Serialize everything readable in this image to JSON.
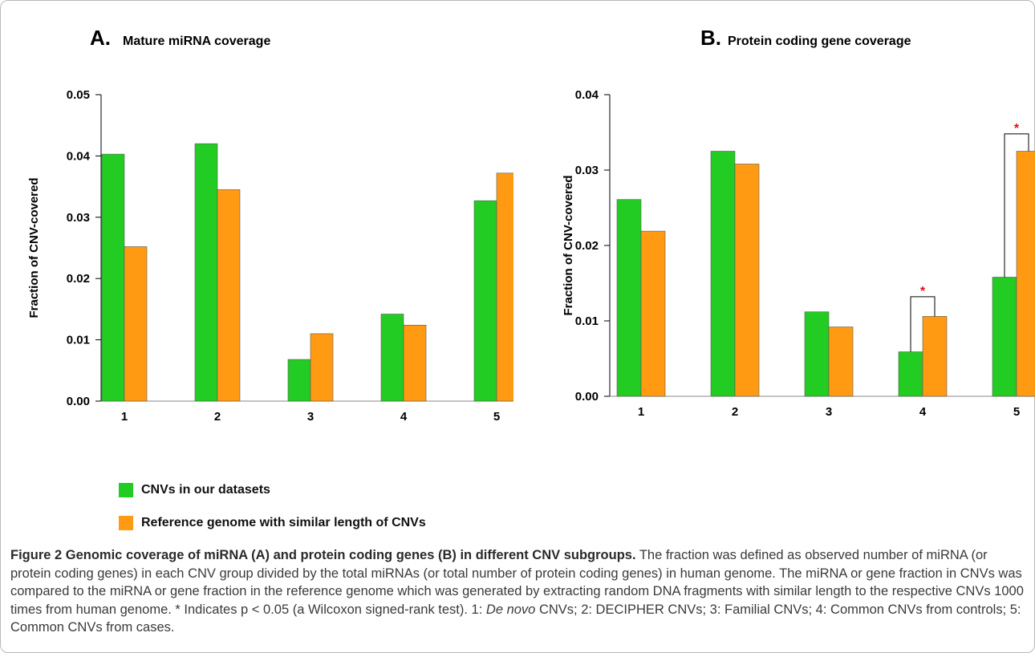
{
  "colors": {
    "ours": "#22cc22",
    "reference": "#ff9a12",
    "significance": "#e01010",
    "axis": "#000000"
  },
  "chart_data": [
    {
      "type": "bar",
      "panel_letter": "A.",
      "title": "Mature miRNA coverage",
      "ylabel": "Fraction of CNV-covered",
      "xlabel": "",
      "ylim": [
        0,
        0.05
      ],
      "yticks": [
        "0.00",
        "0.01",
        "0.02",
        "0.03",
        "0.04",
        "0.05"
      ],
      "categories": [
        "1",
        "2",
        "3",
        "4",
        "5"
      ],
      "series": [
        {
          "name": "CNVs in our datasets",
          "values": [
            0.0403,
            0.042,
            0.0068,
            0.0142,
            0.0327
          ]
        },
        {
          "name": "Reference genome with similar length of CNVs",
          "values": [
            0.0252,
            0.0345,
            0.011,
            0.0124,
            0.0372
          ]
        }
      ],
      "significance": []
    },
    {
      "type": "bar",
      "panel_letter": "B.",
      "title": "Protein coding gene coverage",
      "ylabel": "Fraction of CNV-covered",
      "xlabel": "",
      "ylim": [
        0,
        0.04
      ],
      "yticks": [
        "0.00",
        "0.01",
        "0.02",
        "0.03",
        "0.04"
      ],
      "categories": [
        "1",
        "2",
        "3",
        "4",
        "5"
      ],
      "series": [
        {
          "name": "CNVs in our datasets",
          "values": [
            0.0261,
            0.0325,
            0.0112,
            0.0059,
            0.0158
          ]
        },
        {
          "name": "Reference genome with similar length of CNVs",
          "values": [
            0.0219,
            0.0308,
            0.0092,
            0.0106,
            0.0325
          ]
        }
      ],
      "significance": [
        {
          "category_index": 3,
          "label": "*",
          "bracket_top": 0.0132
        },
        {
          "category_index": 4,
          "label": "*",
          "bracket_top": 0.0348
        }
      ]
    }
  ],
  "legend": [
    {
      "label": "CNVs in our datasets",
      "color_key": "ours"
    },
    {
      "label": "Reference genome with similar length of CNVs",
      "color_key": "reference"
    }
  ],
  "caption": {
    "title": "Figure 2 Genomic coverage of miRNA (A) and protein coding genes (B) in different CNV subgroups.",
    "body_before_italic": " The fraction was defined as observed number of miRNA (or protein coding genes) in each CNV group divided by the total miRNAs (or total number of protein coding genes) in human genome. The miRNA or gene fraction in CNVs was compared to the miRNA or gene fraction in the reference genome which was generated by extracting random DNA fragments with similar length to the respective CNVs 1000 times from human genome. * Indicates p < 0.05 (a Wilcoxon signed-rank test). 1: ",
    "italic": "De novo",
    "body_after_italic": " CNVs; 2: DECIPHER CNVs; 3: Familial CNVs; 4: Common CNVs from controls; 5: Common CNVs from cases."
  }
}
